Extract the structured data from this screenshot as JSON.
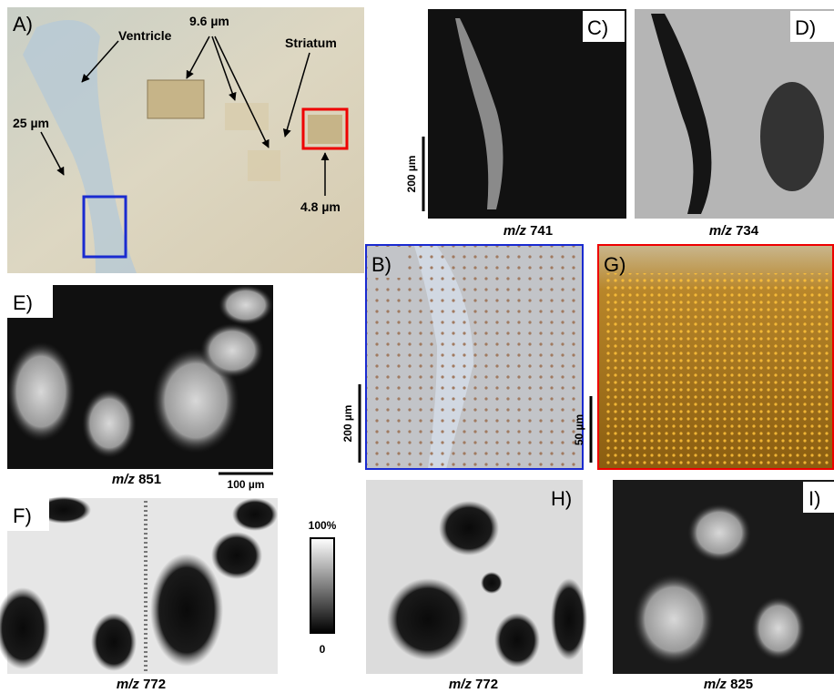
{
  "panels": {
    "A": {
      "label": "A)",
      "annotations": [
        "Ventricle",
        "9.6 µm",
        "Striatum",
        "25 µm",
        "4.8 µm"
      ]
    },
    "B": {
      "label": "B)",
      "scale_bar": "200 µm"
    },
    "C": {
      "label": "C)",
      "caption": [
        "m/z",
        "741"
      ],
      "scale_bar": "200 µm"
    },
    "D": {
      "label": "D)",
      "caption": [
        "m/z",
        "734"
      ]
    },
    "E": {
      "label": "E)",
      "caption": [
        "m/z",
        "851"
      ],
      "scale_bar": "100 µm"
    },
    "F": {
      "label": "F)",
      "caption": [
        "m/z",
        "772"
      ]
    },
    "G": {
      "label": "G)",
      "scale_bar": "50 µm"
    },
    "H": {
      "label": "H)",
      "caption": [
        "m/z",
        "772"
      ]
    },
    "I": {
      "label": "I)",
      "caption": [
        "m/z",
        "825"
      ]
    }
  },
  "colorbar": {
    "max_label": "100%",
    "min_label": "0"
  }
}
